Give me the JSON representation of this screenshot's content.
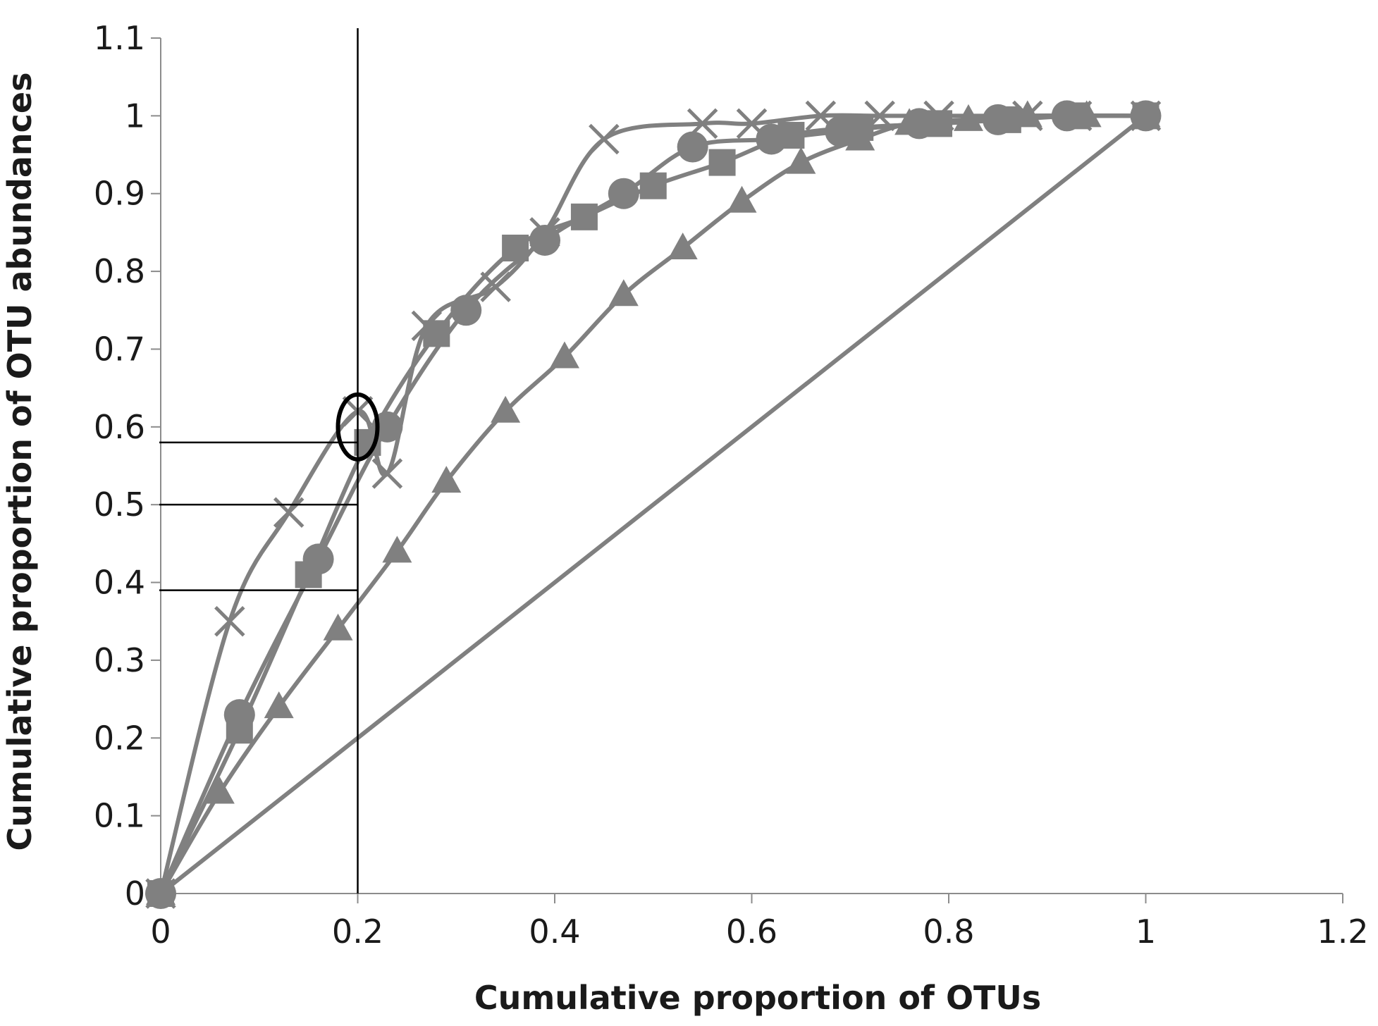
{
  "chart_data": {
    "type": "line",
    "xlabel": "Cumulative proportion of OTUs",
    "ylabel": "Cumulative proportion of OTU abundances",
    "xlim": [
      0,
      1.2
    ],
    "ylim": [
      0,
      1.1
    ],
    "xticks": [
      "0",
      "0.2",
      "0.4",
      "0.6",
      "0.8",
      "1",
      "1.2"
    ],
    "yticks": [
      "0",
      "0.1",
      "0.2",
      "0.3",
      "0.4",
      "0.5",
      "0.6",
      "0.7",
      "0.8",
      "0.9",
      "1",
      "1.1"
    ],
    "grid": false,
    "legend": "none",
    "series_color": "#808080",
    "series": [
      {
        "marker": "cross",
        "x": [
          0,
          0.07,
          0.13,
          0.2,
          0.23,
          0.27,
          0.34,
          0.39,
          0.45,
          0.55,
          0.6,
          0.67,
          0.73,
          0.79,
          0.88,
          0.93,
          1.0
        ],
        "y": [
          0,
          0.35,
          0.49,
          0.62,
          0.54,
          0.73,
          0.78,
          0.85,
          0.97,
          0.99,
          0.99,
          1.0,
          1.0,
          1.0,
          1.0,
          1.0,
          1.0
        ]
      },
      {
        "marker": "circle",
        "x": [
          0,
          0.08,
          0.16,
          0.23,
          0.31,
          0.39,
          0.47,
          0.54,
          0.62,
          0.69,
          0.77,
          0.85,
          0.92,
          1.0
        ],
        "y": [
          0,
          0.23,
          0.43,
          0.6,
          0.75,
          0.84,
          0.9,
          0.96,
          0.97,
          0.98,
          0.99,
          0.995,
          1.0,
          1.0
        ]
      },
      {
        "marker": "square",
        "x": [
          0,
          0.08,
          0.15,
          0.21,
          0.28,
          0.36,
          0.43,
          0.5,
          0.57,
          0.64,
          0.71,
          0.79,
          0.86,
          0.93,
          1.0
        ],
        "y": [
          0,
          0.21,
          0.41,
          0.58,
          0.72,
          0.83,
          0.87,
          0.91,
          0.94,
          0.975,
          0.985,
          0.99,
          0.995,
          1.0,
          1.0
        ]
      },
      {
        "marker": "triangle",
        "x": [
          0,
          0.06,
          0.12,
          0.18,
          0.24,
          0.29,
          0.35,
          0.41,
          0.47,
          0.53,
          0.59,
          0.65,
          0.71,
          0.76,
          0.82,
          0.88,
          0.94,
          1.0
        ],
        "y": [
          0,
          0.13,
          0.24,
          0.34,
          0.44,
          0.53,
          0.62,
          0.69,
          0.77,
          0.83,
          0.89,
          0.94,
          0.97,
          0.99,
          0.995,
          1.0,
          1.0,
          1.0
        ]
      },
      {
        "marker": "none",
        "x": [
          0,
          1.0
        ],
        "y": [
          0,
          1.0
        ]
      }
    ],
    "annotations": {
      "vertical_line_x": 0.2,
      "horizontal_lines_y": [
        0.58,
        0.5,
        0.39
      ],
      "ellipse": {
        "x": 0.2,
        "y": 0.6
      }
    }
  }
}
